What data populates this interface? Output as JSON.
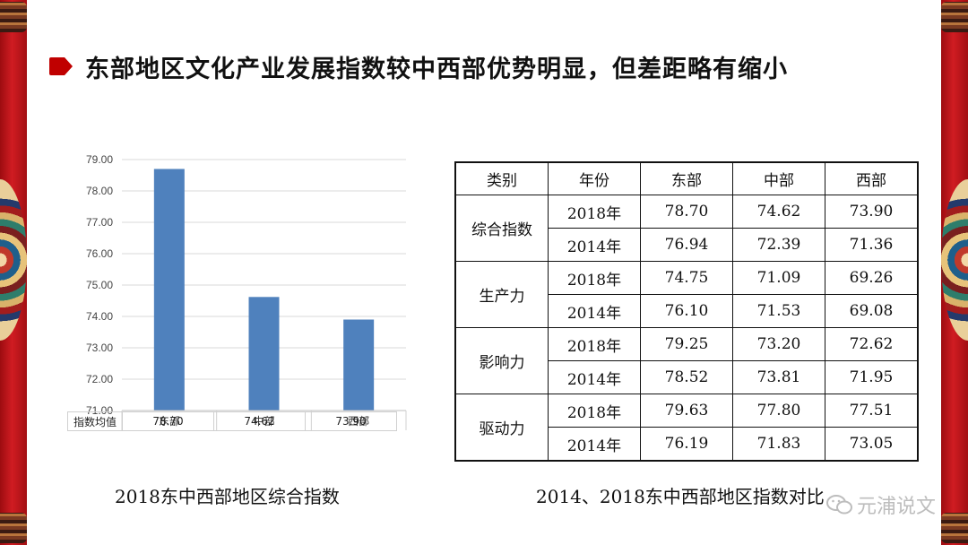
{
  "title": "东部地区文化产业发展指数较中西部优势明显，但差距略有缩小",
  "colors": {
    "accent": "#c00000",
    "bar": "#4f81bd",
    "scroll": "#c8191f"
  },
  "chart_data": {
    "type": "bar",
    "categories": [
      "东部",
      "中部",
      "西部"
    ],
    "values": [
      78.7,
      74.62,
      73.9
    ],
    "title": "",
    "xlabel": "",
    "ylabel": "",
    "ylim": [
      71.0,
      79.0
    ],
    "y_ticks": [
      "79.00",
      "78.00",
      "77.00",
      "76.00",
      "75.00",
      "74.00",
      "73.00",
      "72.00",
      "71.00"
    ],
    "grid": true,
    "data_table": {
      "row_label": "指数均值",
      "values": [
        "78.70",
        "74.62",
        "73.90"
      ]
    }
  },
  "chart_caption": "2018东中西部地区综合指数",
  "comparison_table": {
    "headers": [
      "类别",
      "年份",
      "东部",
      "中部",
      "西部"
    ],
    "groups": [
      {
        "category": "综合指数",
        "rows": [
          {
            "year": "2018年",
            "values": [
              "78.70",
              "74.62",
              "73.90"
            ]
          },
          {
            "year": "2014年",
            "values": [
              "76.94",
              "72.39",
              "71.36"
            ]
          }
        ]
      },
      {
        "category": "生产力",
        "rows": [
          {
            "year": "2018年",
            "values": [
              "74.75",
              "71.09",
              "69.26"
            ]
          },
          {
            "year": "2014年",
            "values": [
              "76.10",
              "71.53",
              "69.08"
            ]
          }
        ]
      },
      {
        "category": "影响力",
        "rows": [
          {
            "year": "2018年",
            "values": [
              "79.25",
              "73.20",
              "72.62"
            ]
          },
          {
            "year": "2014年",
            "values": [
              "78.52",
              "73.81",
              "71.95"
            ]
          }
        ]
      },
      {
        "category": "驱动力",
        "rows": [
          {
            "year": "2018年",
            "values": [
              "79.63",
              "77.80",
              "77.51"
            ]
          },
          {
            "year": "2014年",
            "values": [
              "76.19",
              "71.83",
              "73.05"
            ]
          }
        ]
      }
    ]
  },
  "table_caption": "2014、2018东中西部地区指数对比",
  "watermark": {
    "icon": "wechat-icon",
    "text": "元浦说文"
  }
}
